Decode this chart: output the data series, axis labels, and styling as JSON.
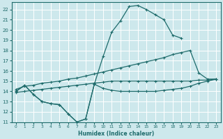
{
  "xlabel": "Humidex (Indice chaleur)",
  "background_color": "#cde8ec",
  "grid_color": "#ffffff",
  "line_color": "#1e6b6b",
  "xlim": [
    -0.5,
    23.5
  ],
  "ylim": [
    11,
    22.7
  ],
  "yticks": [
    11,
    12,
    13,
    14,
    15,
    16,
    17,
    18,
    19,
    20,
    21,
    22
  ],
  "xticks": [
    0,
    1,
    2,
    3,
    4,
    5,
    6,
    7,
    8,
    9,
    10,
    11,
    12,
    13,
    14,
    15,
    16,
    17,
    18,
    19,
    20,
    21,
    22,
    23
  ],
  "curve_x": [
    0,
    1,
    2,
    3,
    4,
    5,
    6,
    7,
    8,
    9,
    10,
    11,
    12,
    13,
    14,
    15,
    16,
    17,
    18,
    19
  ],
  "curve_y": [
    14.0,
    14.6,
    13.7,
    13.0,
    12.8,
    12.7,
    11.8,
    11.0,
    11.3,
    14.7,
    17.4,
    19.8,
    20.9,
    22.3,
    22.4,
    22.0,
    21.5,
    21.0,
    19.5,
    19.2
  ],
  "line2_x": [
    0,
    1,
    2,
    3,
    4,
    5,
    6,
    7,
    8,
    9,
    10,
    11,
    12,
    13,
    14,
    15,
    16,
    17,
    18,
    19,
    20,
    21,
    22,
    23
  ],
  "line2_y": [
    14.2,
    14.5,
    14.6,
    14.8,
    14.9,
    15.0,
    15.2,
    15.3,
    15.5,
    15.7,
    15.9,
    16.1,
    16.3,
    16.5,
    16.7,
    16.9,
    17.1,
    17.3,
    17.6,
    17.8,
    18.0,
    15.8,
    15.2,
    15.2
  ],
  "line3_x": [
    0,
    1,
    2,
    3,
    4,
    5,
    6,
    7,
    8,
    9,
    10,
    11,
    12,
    13,
    14,
    15,
    16,
    17,
    18,
    19,
    20,
    21,
    22,
    23
  ],
  "line3_y": [
    13.9,
    14.0,
    14.1,
    14.2,
    14.3,
    14.4,
    14.5,
    14.6,
    14.7,
    14.8,
    14.9,
    15.0,
    15.0,
    15.0,
    15.0,
    15.0,
    15.0,
    15.0,
    15.0,
    15.0,
    15.0,
    15.1,
    15.1,
    15.2
  ],
  "zigzag_x": [
    0,
    1,
    2,
    3,
    4,
    5,
    6,
    7,
    8,
    9,
    10,
    11,
    12,
    13,
    14,
    15,
    16,
    17,
    18,
    19,
    20,
    21,
    22,
    23
  ],
  "zigzag_y": [
    14.0,
    14.6,
    13.7,
    13.0,
    12.8,
    12.7,
    11.8,
    11.0,
    11.3,
    14.7,
    14.3,
    14.1,
    14.0,
    14.0,
    14.0,
    14.0,
    14.0,
    14.1,
    14.2,
    14.3,
    14.5,
    14.8,
    15.0,
    15.2
  ]
}
